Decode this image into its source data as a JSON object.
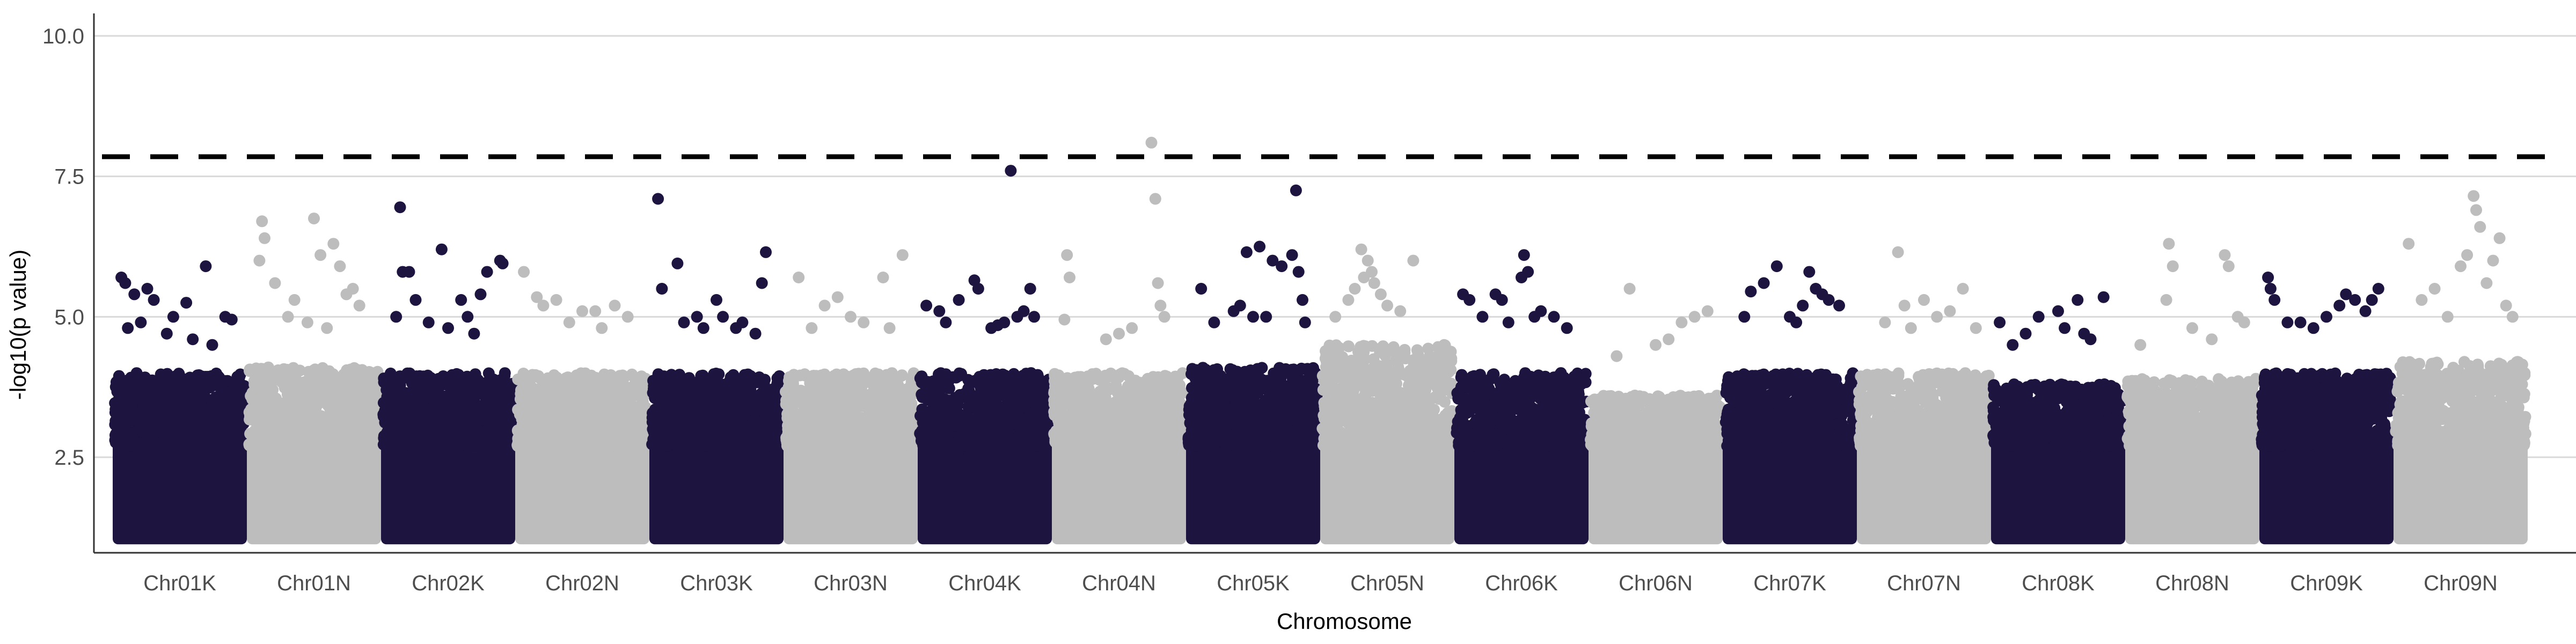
{
  "chart_data": {
    "type": "scatter",
    "subtype": "manhattan",
    "xlabel": "Chromosome",
    "ylabel": "-log10(p value)",
    "ylim": [
      0.8,
      10.4
    ],
    "yticks": [
      2.5,
      5.0,
      7.5,
      10.0
    ],
    "ytick_labels": [
      "2.5",
      "5.0",
      "7.5",
      "10.0"
    ],
    "grid": "horizontal major only",
    "significance_threshold": 7.85,
    "threshold_style": "dashed black",
    "colors": {
      "odd": "#1e1440",
      "even": "#bdbdbd",
      "threshold": "#000000",
      "grid": "#d9d9d9"
    },
    "categories": [
      "Chr01K",
      "Chr01N",
      "Chr02K",
      "Chr02N",
      "Chr03K",
      "Chr03N",
      "Chr04K",
      "Chr04N",
      "Chr05K",
      "Chr05N",
      "Chr06K",
      "Chr06N",
      "Chr07K",
      "Chr07N",
      "Chr08K",
      "Chr08N",
      "Chr09K",
      "Chr09N"
    ],
    "series": [
      {
        "category": "Chr01K",
        "color": "odd",
        "bulk_top": 4.0,
        "points": [
          [
            0.05,
            5.7
          ],
          [
            0.08,
            5.6
          ],
          [
            0.15,
            5.4
          ],
          [
            0.25,
            5.5
          ],
          [
            0.3,
            5.3
          ],
          [
            0.45,
            5.0
          ],
          [
            0.55,
            5.25
          ],
          [
            0.7,
            5.9
          ],
          [
            0.85,
            5.0
          ],
          [
            0.9,
            4.95
          ],
          [
            0.1,
            4.8
          ],
          [
            0.2,
            4.9
          ],
          [
            0.4,
            4.7
          ],
          [
            0.6,
            4.6
          ],
          [
            0.75,
            4.5
          ]
        ]
      },
      {
        "category": "Chr01N",
        "color": "even",
        "bulk_top": 4.1,
        "points": [
          [
            0.1,
            6.7
          ],
          [
            0.12,
            6.4
          ],
          [
            0.08,
            6.0
          ],
          [
            0.2,
            5.6
          ],
          [
            0.35,
            5.3
          ],
          [
            0.5,
            6.75
          ],
          [
            0.55,
            6.1
          ],
          [
            0.65,
            6.3
          ],
          [
            0.7,
            5.9
          ],
          [
            0.75,
            5.4
          ],
          [
            0.8,
            5.5
          ],
          [
            0.85,
            5.2
          ],
          [
            0.3,
            5.0
          ],
          [
            0.45,
            4.9
          ],
          [
            0.6,
            4.8
          ]
        ]
      },
      {
        "category": "Chr02K",
        "color": "odd",
        "bulk_top": 4.0,
        "points": [
          [
            0.13,
            6.95
          ],
          [
            0.15,
            5.8
          ],
          [
            0.2,
            5.8
          ],
          [
            0.25,
            5.3
          ],
          [
            0.45,
            6.2
          ],
          [
            0.6,
            5.3
          ],
          [
            0.65,
            5.0
          ],
          [
            0.75,
            5.4
          ],
          [
            0.8,
            5.8
          ],
          [
            0.9,
            6.0
          ],
          [
            0.92,
            5.95
          ],
          [
            0.1,
            5.0
          ],
          [
            0.35,
            4.9
          ],
          [
            0.5,
            4.8
          ],
          [
            0.7,
            4.7
          ]
        ]
      },
      {
        "category": "Chr02N",
        "color": "even",
        "bulk_top": 4.0,
        "points": [
          [
            0.05,
            5.8
          ],
          [
            0.15,
            5.35
          ],
          [
            0.2,
            5.2
          ],
          [
            0.3,
            5.3
          ],
          [
            0.5,
            5.1
          ],
          [
            0.6,
            5.1
          ],
          [
            0.75,
            5.2
          ],
          [
            0.85,
            5.0
          ],
          [
            0.4,
            4.9
          ],
          [
            0.65,
            4.8
          ]
        ]
      },
      {
        "category": "Chr03K",
        "color": "odd",
        "bulk_top": 4.0,
        "points": [
          [
            0.05,
            7.1
          ],
          [
            0.2,
            5.95
          ],
          [
            0.08,
            5.5
          ],
          [
            0.35,
            5.0
          ],
          [
            0.5,
            5.3
          ],
          [
            0.55,
            5.0
          ],
          [
            0.85,
            5.6
          ],
          [
            0.88,
            6.15
          ],
          [
            0.7,
            4.9
          ],
          [
            0.25,
            4.9
          ],
          [
            0.4,
            4.8
          ],
          [
            0.65,
            4.8
          ],
          [
            0.8,
            4.7
          ]
        ]
      },
      {
        "category": "Chr03N",
        "color": "even",
        "bulk_top": 4.0,
        "points": [
          [
            0.1,
            5.7
          ],
          [
            0.3,
            5.2
          ],
          [
            0.4,
            5.35
          ],
          [
            0.5,
            5.0
          ],
          [
            0.75,
            5.7
          ],
          [
            0.9,
            6.1
          ],
          [
            0.6,
            4.9
          ],
          [
            0.2,
            4.8
          ],
          [
            0.8,
            4.8
          ]
        ]
      },
      {
        "category": "Chr04K",
        "color": "odd",
        "bulk_top": 4.0,
        "points": [
          [
            0.05,
            5.2
          ],
          [
            0.15,
            5.1
          ],
          [
            0.3,
            5.3
          ],
          [
            0.42,
            5.65
          ],
          [
            0.45,
            5.5
          ],
          [
            0.7,
            7.6
          ],
          [
            0.75,
            5.0
          ],
          [
            0.8,
            5.1
          ],
          [
            0.85,
            5.5
          ],
          [
            0.88,
            5.0
          ],
          [
            0.2,
            4.9
          ],
          [
            0.55,
            4.8
          ],
          [
            0.6,
            4.85
          ],
          [
            0.65,
            4.9
          ]
        ]
      },
      {
        "category": "Chr04N",
        "color": "even",
        "bulk_top": 4.0,
        "points": [
          [
            0.1,
            6.1
          ],
          [
            0.12,
            5.7
          ],
          [
            0.08,
            4.95
          ],
          [
            0.75,
            8.1
          ],
          [
            0.78,
            7.1
          ],
          [
            0.8,
            5.6
          ],
          [
            0.82,
            5.2
          ],
          [
            0.85,
            5.0
          ],
          [
            0.5,
            4.7
          ],
          [
            0.4,
            4.6
          ],
          [
            0.6,
            4.8
          ]
        ]
      },
      {
        "category": "Chr05K",
        "color": "odd",
        "bulk_top": 4.1,
        "points": [
          [
            0.1,
            5.5
          ],
          [
            0.35,
            5.1
          ],
          [
            0.4,
            5.2
          ],
          [
            0.45,
            6.15
          ],
          [
            0.55,
            6.25
          ],
          [
            0.65,
            6.0
          ],
          [
            0.72,
            5.9
          ],
          [
            0.8,
            6.1
          ],
          [
            0.83,
            7.25
          ],
          [
            0.85,
            5.8
          ],
          [
            0.88,
            5.3
          ],
          [
            0.6,
            5.0
          ],
          [
            0.2,
            4.9
          ],
          [
            0.5,
            5.0
          ],
          [
            0.9,
            4.9
          ]
        ]
      },
      {
        "category": "Chr05N",
        "color": "even",
        "bulk_top": 4.5,
        "points": [
          [
            0.3,
            6.2
          ],
          [
            0.35,
            6.0
          ],
          [
            0.38,
            5.8
          ],
          [
            0.32,
            5.7
          ],
          [
            0.4,
            5.6
          ],
          [
            0.25,
            5.5
          ],
          [
            0.45,
            5.4
          ],
          [
            0.7,
            6.0
          ],
          [
            0.2,
            5.3
          ],
          [
            0.5,
            5.2
          ],
          [
            0.6,
            5.1
          ],
          [
            0.1,
            5.0
          ]
        ]
      },
      {
        "category": "Chr06K",
        "color": "odd",
        "bulk_top": 4.0,
        "points": [
          [
            0.05,
            5.4
          ],
          [
            0.1,
            5.3
          ],
          [
            0.2,
            5.0
          ],
          [
            0.3,
            5.4
          ],
          [
            0.35,
            5.3
          ],
          [
            0.5,
            5.7
          ],
          [
            0.52,
            6.1
          ],
          [
            0.55,
            5.8
          ],
          [
            0.65,
            5.1
          ],
          [
            0.75,
            5.0
          ],
          [
            0.85,
            4.8
          ],
          [
            0.4,
            4.9
          ],
          [
            0.6,
            5.0
          ]
        ]
      },
      {
        "category": "Chr06N",
        "color": "even",
        "bulk_top": 3.6,
        "points": [
          [
            0.3,
            5.5
          ],
          [
            0.7,
            4.9
          ],
          [
            0.8,
            5.0
          ],
          [
            0.9,
            5.1
          ],
          [
            0.5,
            4.5
          ],
          [
            0.6,
            4.6
          ],
          [
            0.2,
            4.3
          ]
        ]
      },
      {
        "category": "Chr07K",
        "color": "odd",
        "bulk_top": 4.0,
        "points": [
          [
            0.15,
            5.0
          ],
          [
            0.2,
            5.45
          ],
          [
            0.3,
            5.6
          ],
          [
            0.4,
            5.9
          ],
          [
            0.65,
            5.8
          ],
          [
            0.7,
            5.5
          ],
          [
            0.75,
            5.4
          ],
          [
            0.8,
            5.3
          ],
          [
            0.88,
            5.2
          ],
          [
            0.5,
            5.0
          ],
          [
            0.6,
            5.2
          ],
          [
            0.55,
            4.9
          ]
        ]
      },
      {
        "category": "Chr07N",
        "color": "even",
        "bulk_top": 4.0,
        "points": [
          [
            0.3,
            6.15
          ],
          [
            0.35,
            5.2
          ],
          [
            0.5,
            5.3
          ],
          [
            0.6,
            5.0
          ],
          [
            0.7,
            5.1
          ],
          [
            0.8,
            5.5
          ],
          [
            0.2,
            4.9
          ],
          [
            0.4,
            4.8
          ],
          [
            0.9,
            4.8
          ]
        ]
      },
      {
        "category": "Chr08K",
        "color": "odd",
        "bulk_top": 3.8,
        "points": [
          [
            0.05,
            4.9
          ],
          [
            0.25,
            4.7
          ],
          [
            0.35,
            5.0
          ],
          [
            0.5,
            5.1
          ],
          [
            0.55,
            4.8
          ],
          [
            0.65,
            5.3
          ],
          [
            0.7,
            4.7
          ],
          [
            0.85,
            5.35
          ],
          [
            0.75,
            4.6
          ],
          [
            0.15,
            4.5
          ]
        ]
      },
      {
        "category": "Chr08N",
        "color": "even",
        "bulk_top": 3.9,
        "points": [
          [
            0.1,
            4.5
          ],
          [
            0.3,
            5.3
          ],
          [
            0.32,
            6.3
          ],
          [
            0.35,
            5.9
          ],
          [
            0.5,
            4.8
          ],
          [
            0.65,
            4.6
          ],
          [
            0.75,
            6.1
          ],
          [
            0.78,
            5.9
          ],
          [
            0.85,
            5.0
          ],
          [
            0.9,
            4.9
          ]
        ]
      },
      {
        "category": "Chr09K",
        "color": "odd",
        "bulk_top": 4.0,
        "points": [
          [
            0.05,
            5.7
          ],
          [
            0.07,
            5.5
          ],
          [
            0.1,
            5.3
          ],
          [
            0.3,
            4.9
          ],
          [
            0.5,
            5.0
          ],
          [
            0.6,
            5.2
          ],
          [
            0.65,
            5.4
          ],
          [
            0.72,
            5.3
          ],
          [
            0.8,
            5.1
          ],
          [
            0.85,
            5.3
          ],
          [
            0.9,
            5.5
          ],
          [
            0.4,
            4.8
          ],
          [
            0.2,
            4.9
          ]
        ]
      },
      {
        "category": "Chr09N",
        "color": "even",
        "bulk_top": 4.2,
        "points": [
          [
            0.1,
            6.3
          ],
          [
            0.2,
            5.3
          ],
          [
            0.3,
            5.5
          ],
          [
            0.5,
            5.9
          ],
          [
            0.55,
            6.1
          ],
          [
            0.6,
            7.15
          ],
          [
            0.62,
            6.9
          ],
          [
            0.65,
            6.6
          ],
          [
            0.7,
            5.6
          ],
          [
            0.75,
            6.0
          ],
          [
            0.8,
            6.4
          ],
          [
            0.85,
            5.2
          ],
          [
            0.9,
            5.0
          ],
          [
            0.4,
            5.0
          ]
        ]
      }
    ]
  }
}
